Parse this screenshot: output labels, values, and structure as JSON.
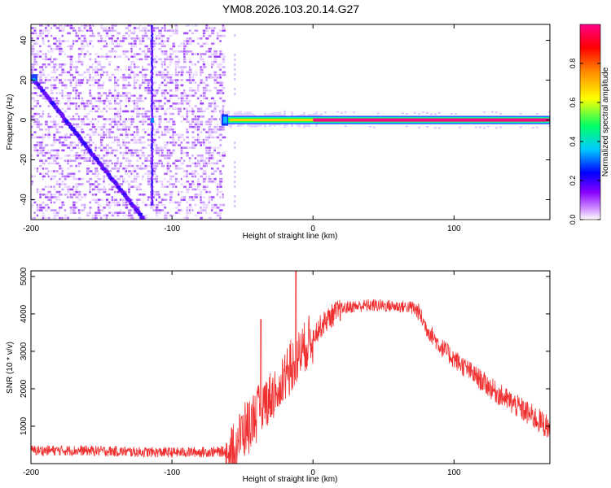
{
  "chart_data": [
    {
      "type": "heatmap",
      "title": "YM08.2026.103.20.14.G27",
      "xlabel": "Height of straight line (km)",
      "ylabel": "Frequency (Hz)",
      "xlim": [
        -200,
        168
      ],
      "ylim": [
        -50,
        48
      ],
      "xticks": [
        -200,
        -100,
        0,
        100
      ],
      "yticks": [
        -40,
        -20,
        0,
        20,
        40
      ],
      "grid": false,
      "colorbar": {
        "label": "Normalized spectral amplitude",
        "range": [
          0,
          1
        ],
        "ticks": [
          "0.0",
          "0.2",
          "0.4",
          "0.6",
          "0.8"
        ],
        "colors": [
          "#ffffff",
          "#cc88ff",
          "#8800ff",
          "#0000ff",
          "#00ccff",
          "#00ff66",
          "#ffff00",
          "#ff8800",
          "#ff0000",
          "#ff0088"
        ]
      },
      "features": [
        {
          "name": "diagonal trace",
          "from": [
            -200,
            22
          ],
          "to": [
            -120,
            -50
          ]
        },
        {
          "name": "vertical trace",
          "x": -114,
          "y_range": [
            -42,
            48
          ]
        },
        {
          "name": "carrier band",
          "x_range": [
            -66,
            168
          ],
          "frequency": 0,
          "amplitude": 0.95
        },
        {
          "name": "noise region",
          "x_range": [
            -200,
            -63
          ]
        }
      ]
    },
    {
      "type": "line",
      "xlabel": "Height of straight line (km)",
      "ylabel": "SNR (10 * v/v)",
      "xlim": [
        -200,
        168
      ],
      "ylim": [
        0,
        5150
      ],
      "xticks": [
        -200,
        -100,
        0,
        100
      ],
      "yticks": [
        1000,
        2000,
        3000,
        4000,
        5000
      ],
      "grid": false,
      "color": "#f03030",
      "series": [
        {
          "x": [
            -200,
            -175,
            -150,
            -125,
            -100,
            -75,
            -62,
            -55,
            -50,
            -45,
            -40,
            -35,
            -30,
            -25,
            -20,
            -15,
            -10,
            -5,
            0,
            5,
            10,
            15,
            20,
            25,
            30,
            40,
            50,
            60,
            70,
            75,
            80,
            90,
            100,
            110,
            120,
            130,
            140,
            150,
            160,
            168
          ],
          "y": [
            350,
            350,
            340,
            310,
            300,
            310,
            320,
            500,
            850,
            1100,
            1350,
            1600,
            1800,
            2000,
            2400,
            2650,
            2900,
            3150,
            3450,
            3650,
            3850,
            4000,
            4120,
            4180,
            4200,
            4230,
            4220,
            4200,
            4180,
            4050,
            3650,
            3150,
            2800,
            2500,
            2200,
            1900,
            1650,
            1400,
            1150,
            950
          ]
        }
      ],
      "spikes": [
        {
          "x": -37,
          "y": 3850
        },
        {
          "x": -12,
          "y": 5150
        }
      ]
    }
  ]
}
